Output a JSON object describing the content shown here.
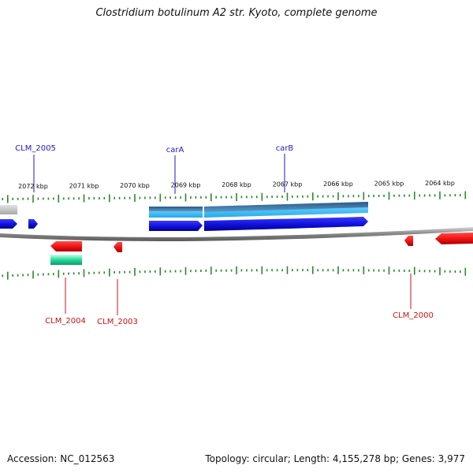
{
  "title": "Clostridium botulinum A2 str. Kyoto, complete genome",
  "footer": {
    "accession": "Accession: NC_012563",
    "summary": "Topology: circular; Length: 4,155,278 bp; Genes: 3,977"
  },
  "colors": {
    "backbone": "#777777",
    "tick": "#2a8a2a",
    "forward_label": "#1a1acc",
    "reverse_label": "#cc1111",
    "forward_gene": "#1010dd",
    "reverse_gene": "#ee1111",
    "rna_gene": "#22dd99",
    "operon_dark": "#3a7aa8",
    "operon_light": "#33bbee",
    "grey_feature": "#bbbbbb"
  },
  "scale": {
    "unit": "kbp",
    "labels": [
      {
        "kbp": 2072,
        "text": "2072 kbp"
      },
      {
        "kbp": 2071,
        "text": "2071 kbp"
      },
      {
        "kbp": 2070,
        "text": "2070 kbp"
      },
      {
        "kbp": 2069,
        "text": "2069 kbp"
      },
      {
        "kbp": 2068,
        "text": "2068 kbp"
      },
      {
        "kbp": 2067,
        "text": "2067 kbp"
      },
      {
        "kbp": 2066,
        "text": "2066 kbp"
      },
      {
        "kbp": 2065,
        "text": "2065 kbp"
      },
      {
        "kbp": 2064,
        "text": "2064 kbp"
      }
    ]
  },
  "gene_labels": {
    "top": [
      {
        "name": "CLM_2005"
      },
      {
        "name": "carA"
      },
      {
        "name": "carB"
      }
    ],
    "bottom": [
      {
        "name": "CLM_2004"
      },
      {
        "name": "CLM_2003"
      },
      {
        "name": "CLM_2000"
      }
    ]
  }
}
